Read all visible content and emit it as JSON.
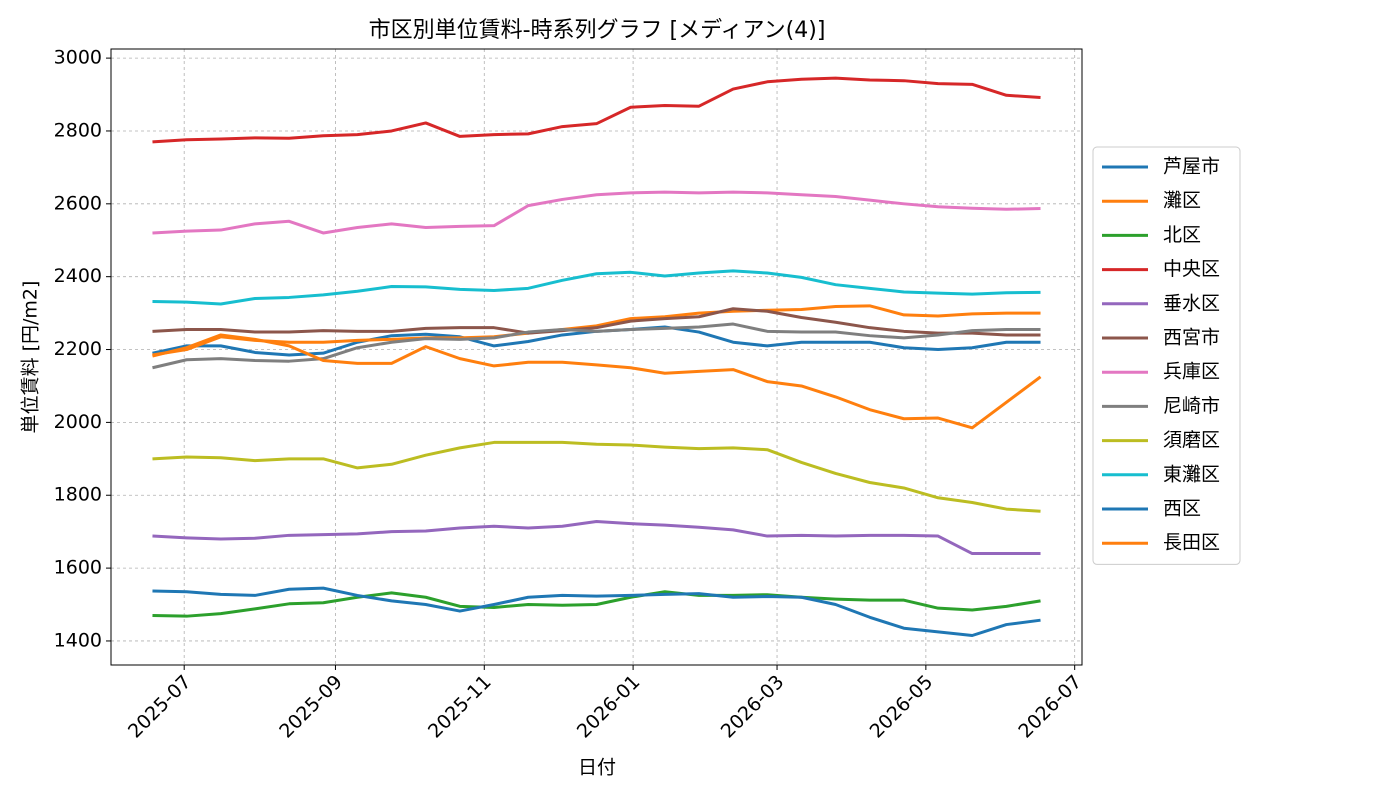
{
  "chart_data": {
    "type": "line",
    "title": "市区別単位賃料-時系列グラフ [メディアン(4)]",
    "x_label": "日付",
    "y_label": "単位賃料 [円/m2]",
    "x": [
      "2025-06-18",
      "2025-07-02",
      "2025-07-16",
      "2025-07-30",
      "2025-08-13",
      "2025-08-27",
      "2025-09-10",
      "2025-09-24",
      "2025-10-08",
      "2025-10-22",
      "2025-11-05",
      "2025-11-19",
      "2025-12-03",
      "2025-12-17",
      "2025-12-31",
      "2026-01-14",
      "2026-01-28",
      "2026-02-11",
      "2026-02-25",
      "2026-03-11",
      "2026-03-25",
      "2026-04-08",
      "2026-04-22",
      "2026-05-06",
      "2026-05-20",
      "2026-06-03",
      "2026-06-17"
    ],
    "xlim": [
      "2025-06-01",
      "2026-07-04"
    ],
    "xticks": [
      {
        "value": "2025-07-01",
        "label": "2025-07"
      },
      {
        "value": "2025-09-01",
        "label": "2025-09"
      },
      {
        "value": "2025-11-01",
        "label": "2025-11"
      },
      {
        "value": "2026-01-01",
        "label": "2026-01"
      },
      {
        "value": "2026-03-01",
        "label": "2026-03"
      },
      {
        "value": "2026-05-01",
        "label": "2026-05"
      },
      {
        "value": "2026-07-01",
        "label": "2026-07"
      }
    ],
    "ylim": [
      1334,
      3025
    ],
    "yticks": [
      1400,
      1600,
      1800,
      2000,
      2200,
      2400,
      2600,
      2800,
      3000
    ],
    "grid": true,
    "legend": "outside-right",
    "series": [
      {
        "name": "芦屋市",
        "color": "#1f77b4",
        "values": [
          2190,
          2210,
          2210,
          2192,
          2185,
          2190,
          2220,
          2238,
          2242,
          2235,
          2210,
          2222,
          2240,
          2250,
          2255,
          2262,
          2248,
          2220,
          2210,
          2220,
          2220,
          2220,
          2205,
          2200,
          2205,
          2220,
          2220
        ]
      },
      {
        "name": "灘区",
        "color": "#ff7f0e",
        "values": [
          2185,
          2200,
          2235,
          2225,
          2220,
          2220,
          2225,
          2228,
          2232,
          2232,
          2235,
          2245,
          2255,
          2265,
          2285,
          2290,
          2300,
          2305,
          2308,
          2310,
          2318,
          2320,
          2295,
          2292,
          2298,
          2300,
          2300
        ]
      },
      {
        "name": "北区",
        "color": "#2ca02c",
        "values": [
          1470,
          1468,
          1475,
          1488,
          1502,
          1505,
          1520,
          1532,
          1520,
          1495,
          1492,
          1500,
          1498,
          1500,
          1520,
          1535,
          1525,
          1525,
          1527,
          1520,
          1515,
          1512,
          1512,
          1490,
          1485,
          1495,
          1510
        ]
      },
      {
        "name": "中央区",
        "color": "#d62728",
        "values": [
          2770,
          2776,
          2778,
          2781,
          2780,
          2787,
          2790,
          2800,
          2822,
          2785,
          2790,
          2792,
          2812,
          2820,
          2865,
          2870,
          2868,
          2915,
          2935,
          2942,
          2945,
          2940,
          2938,
          2930,
          2928,
          2898,
          2892
        ]
      },
      {
        "name": "垂水区",
        "color": "#9467bd",
        "values": [
          1688,
          1683,
          1680,
          1682,
          1690,
          1692,
          1694,
          1700,
          1702,
          1710,
          1715,
          1710,
          1715,
          1728,
          1722,
          1718,
          1712,
          1705,
          1688,
          1690,
          1688,
          1690,
          1690,
          1688,
          1640,
          1640,
          1640
        ]
      },
      {
        "name": "西宮市",
        "color": "#8c564b",
        "values": [
          2250,
          2255,
          2255,
          2248,
          2248,
          2252,
          2250,
          2250,
          2258,
          2260,
          2260,
          2245,
          2252,
          2260,
          2278,
          2285,
          2290,
          2312,
          2305,
          2288,
          2275,
          2260,
          2250,
          2245,
          2245,
          2240,
          2240
        ]
      },
      {
        "name": "兵庫区",
        "color": "#e377c2",
        "values": [
          2520,
          2525,
          2528,
          2545,
          2552,
          2520,
          2535,
          2545,
          2535,
          2538,
          2540,
          2595,
          2612,
          2625,
          2630,
          2632,
          2630,
          2632,
          2630,
          2625,
          2620,
          2610,
          2600,
          2592,
          2588,
          2585,
          2587
        ]
      },
      {
        "name": "尼崎市",
        "color": "#7f7f7f",
        "values": [
          2150,
          2172,
          2175,
          2170,
          2168,
          2175,
          2205,
          2220,
          2230,
          2228,
          2232,
          2248,
          2255,
          2250,
          2255,
          2258,
          2262,
          2270,
          2250,
          2248,
          2248,
          2238,
          2232,
          2240,
          2252,
          2255,
          2255
        ]
      },
      {
        "name": "須磨区",
        "color": "#bcbd22",
        "values": [
          1900,
          1905,
          1903,
          1895,
          1900,
          1900,
          1875,
          1885,
          1910,
          1930,
          1945,
          1945,
          1945,
          1940,
          1938,
          1932,
          1928,
          1930,
          1925,
          1890,
          1860,
          1835,
          1820,
          1793,
          1780,
          1762,
          1756
        ]
      },
      {
        "name": "東灘区",
        "color": "#17becf",
        "values": [
          2332,
          2330,
          2325,
          2340,
          2343,
          2350,
          2360,
          2373,
          2372,
          2365,
          2362,
          2368,
          2390,
          2408,
          2412,
          2402,
          2410,
          2416,
          2410,
          2398,
          2378,
          2368,
          2358,
          2355,
          2352,
          2356,
          2357
        ]
      },
      {
        "name": "西区",
        "color": "#1f77b4",
        "values": [
          1537,
          1535,
          1528,
          1525,
          1542,
          1545,
          1525,
          1510,
          1500,
          1482,
          1500,
          1520,
          1525,
          1523,
          1525,
          1528,
          1530,
          1520,
          1522,
          1520,
          1500,
          1465,
          1435,
          1425,
          1415,
          1445,
          1457
        ]
      },
      {
        "name": "長田区",
        "color": "#ff7f0e",
        "values": [
          2182,
          2205,
          2240,
          2228,
          2210,
          2170,
          2162,
          2162,
          2208,
          2175,
          2155,
          2165,
          2165,
          2158,
          2150,
          2135,
          2140,
          2145,
          2112,
          2100,
          2070,
          2035,
          2010,
          2012,
          1985,
          2055,
          2125
        ]
      }
    ]
  }
}
